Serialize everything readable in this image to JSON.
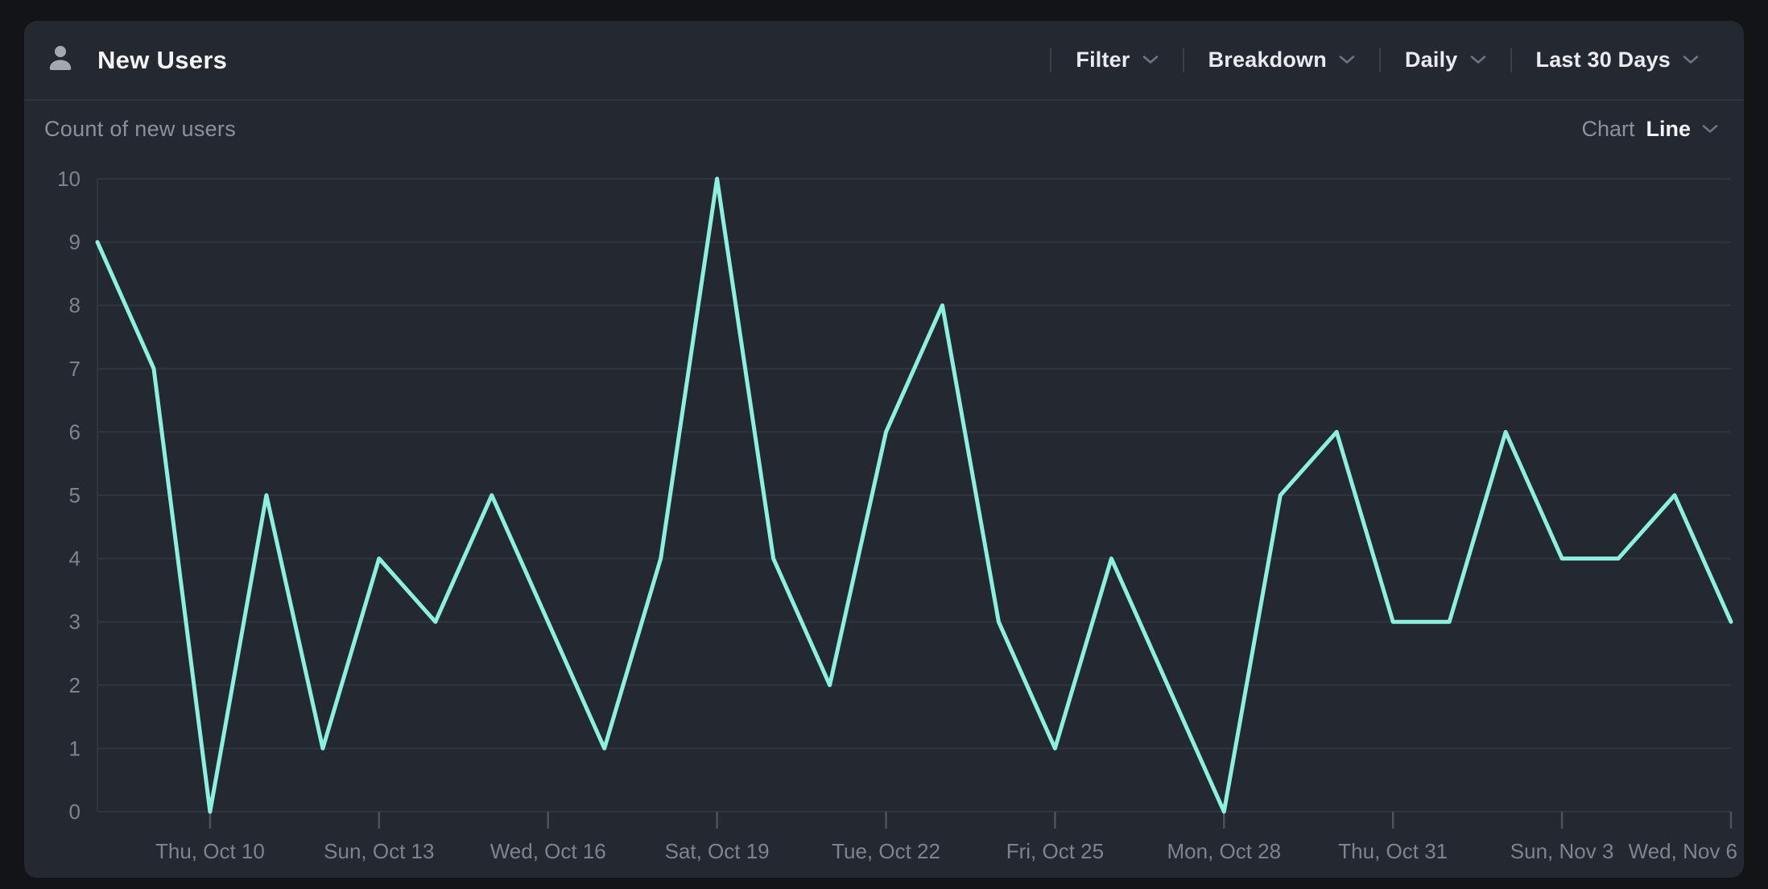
{
  "card": {
    "title": "New Users",
    "toolbar": [
      {
        "label": "Filter"
      },
      {
        "label": "Breakdown"
      },
      {
        "label": "Daily"
      },
      {
        "label": "Last 30 Days"
      }
    ],
    "subheader": {
      "left_label": "Count of new users",
      "chart_word": "Chart",
      "chart_type": "Line"
    }
  },
  "colors": {
    "page_bg": "#131418",
    "card_bg": "#242831",
    "header_border": "#2e333d",
    "grid_line": "#31353f",
    "tick_mark": "#4d525c",
    "axis_text": "#7d8490",
    "line": "#8cf0df",
    "title_text": "#f3f4f6",
    "muted_text": "#8b919d",
    "icon_gray": "#a3a8b1",
    "chevron": "#6d7380"
  },
  "chart_data": {
    "type": "line",
    "title": "Count of new users",
    "xlabel": "",
    "ylabel": "Count of new users",
    "ylim": [
      0,
      10
    ],
    "y_tick_step": 1,
    "grid": "horizontal",
    "legend": "none",
    "x": [
      "Tue, Oct 8",
      "Wed, Oct 9",
      "Thu, Oct 10",
      "Fri, Oct 11",
      "Sat, Oct 12",
      "Sun, Oct 13",
      "Mon, Oct 14",
      "Tue, Oct 15",
      "Wed, Oct 16",
      "Thu, Oct 17",
      "Fri, Oct 18",
      "Sat, Oct 19",
      "Sun, Oct 20",
      "Mon, Oct 21",
      "Tue, Oct 22",
      "Wed, Oct 23",
      "Thu, Oct 24",
      "Fri, Oct 25",
      "Sat, Oct 26",
      "Sun, Oct 27",
      "Mon, Oct 28",
      "Tue, Oct 29",
      "Wed, Oct 30",
      "Thu, Oct 31",
      "Fri, Nov 1",
      "Sat, Nov 2",
      "Sun, Nov 3",
      "Mon, Nov 4",
      "Tue, Nov 5",
      "Wed, Nov 6"
    ],
    "series": [
      {
        "name": "New Users",
        "values": [
          9,
          7,
          0,
          5,
          1,
          4,
          3,
          5,
          3,
          1,
          4,
          10,
          4,
          2,
          6,
          8,
          3,
          1,
          4,
          2,
          0,
          5,
          6,
          3,
          3,
          6,
          4,
          4,
          5,
          3
        ]
      }
    ],
    "x_tick_indices": [
      2,
      5,
      8,
      11,
      14,
      17,
      20,
      23,
      26,
      29
    ],
    "x_tick_labels": [
      "Thu, Oct 10",
      "Sun, Oct 13",
      "Wed, Oct 16",
      "Sat, Oct 19",
      "Tue, Oct 22",
      "Fri, Oct 25",
      "Mon, Oct 28",
      "Thu, Oct 31",
      "Sun, Nov 3",
      "Wed, Nov 6"
    ]
  }
}
